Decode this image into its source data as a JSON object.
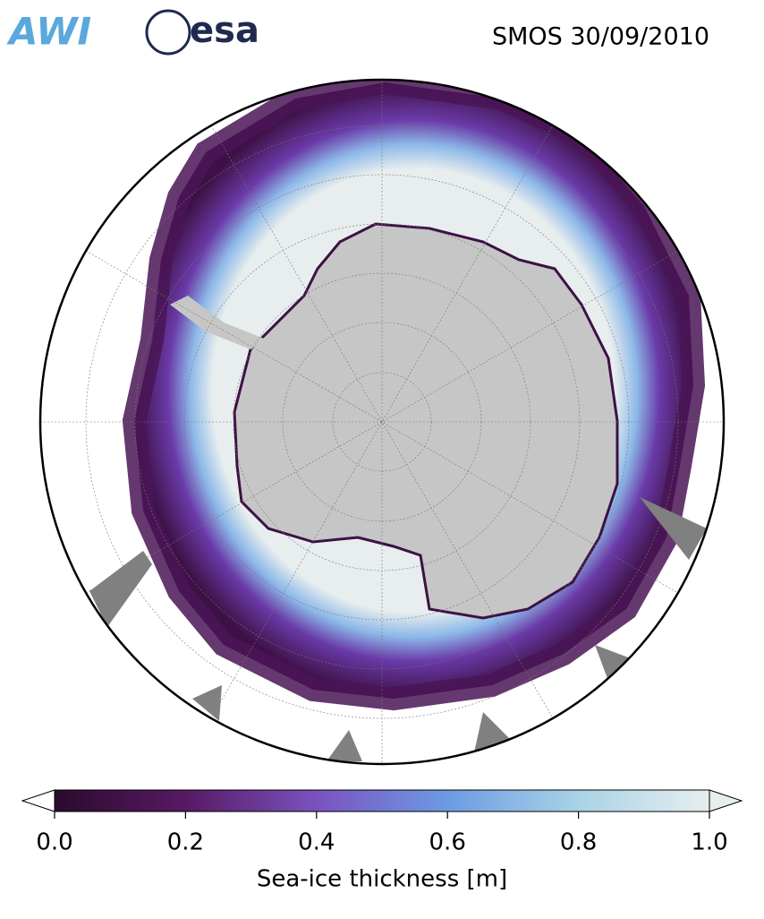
{
  "header": {
    "logos": [
      "AWI",
      "esa"
    ],
    "title": "SMOS 30/09/2010"
  },
  "colorbar": {
    "label": "Sea-ice thickness [m]",
    "lim": [
      0,
      1
    ],
    "ticks": [
      {
        "value": 0,
        "label": "0.0"
      },
      0.2,
      0.4,
      0.6,
      0.8,
      {
        "value": 1,
        "label": "1.0"
      }
    ],
    "colors": [
      "#2b0b2e",
      "#571a63",
      "#7a52bf",
      "#6c9be3",
      "#a9d3e6",
      "#e6eeee"
    ]
  }
}
